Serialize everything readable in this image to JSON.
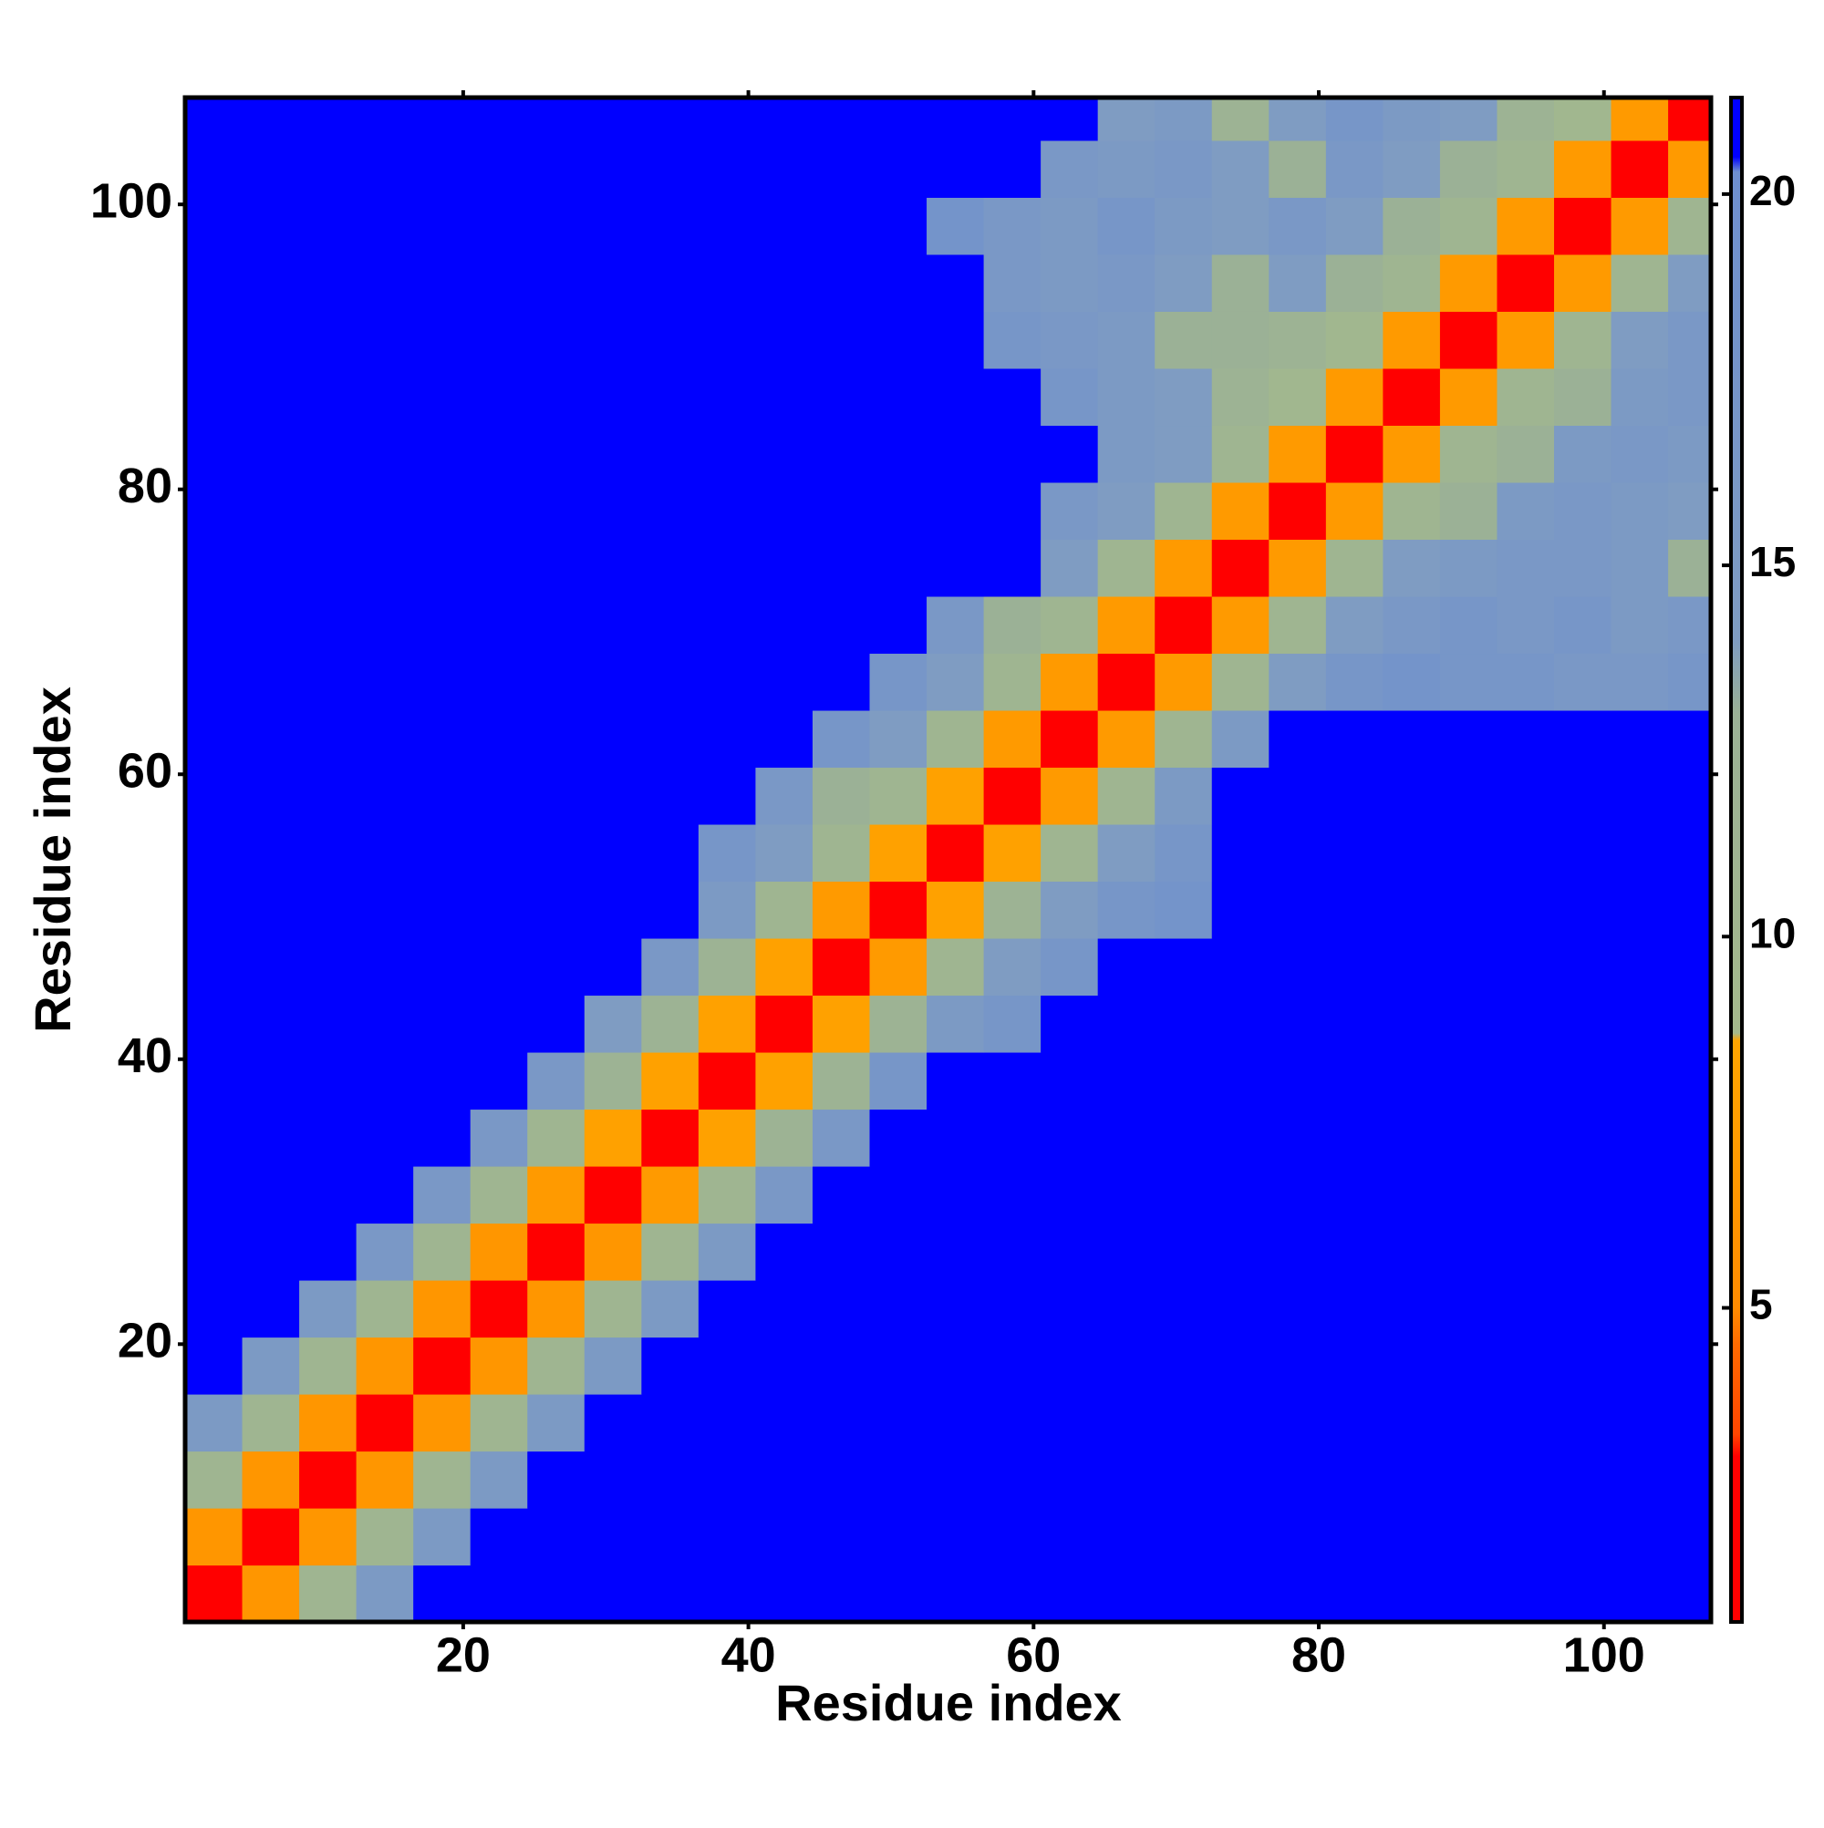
{
  "chart_data": {
    "type": "heatmap",
    "xlabel": "Residue index",
    "ylabel": "Residue index",
    "x_bins": [
      0.5,
      4.5,
      8.5,
      12.5,
      16.5,
      20.5,
      24.5,
      28.5,
      32.5,
      36.5,
      40.5,
      44.5,
      48.5,
      52.5,
      56.5,
      60.5,
      64.5,
      68.5,
      72.5,
      76.5,
      80.5,
      84.5,
      88.5,
      92.5,
      96.5,
      100.5,
      104.5,
      107.5
    ],
    "y_bins": [
      0.5,
      4.5,
      8.5,
      12.5,
      16.5,
      20.5,
      24.5,
      28.5,
      32.5,
      36.5,
      40.5,
      44.5,
      48.5,
      52.5,
      56.5,
      60.5,
      64.5,
      68.5,
      72.5,
      76.5,
      80.5,
      84.5,
      88.5,
      92.5,
      96.5,
      100.5,
      104.5,
      107.5
    ],
    "z": [
      [
        2.5,
        6.5,
        11,
        15,
        22,
        22,
        22,
        22,
        22,
        22,
        22,
        22,
        22,
        22,
        22,
        22,
        22,
        22,
        22,
        22,
        22,
        22,
        22,
        22,
        22,
        22,
        22
      ],
      [
        6.5,
        2.5,
        6.5,
        11,
        15,
        22,
        22,
        22,
        22,
        22,
        22,
        22,
        22,
        22,
        22,
        22,
        22,
        22,
        22,
        22,
        22,
        22,
        22,
        22,
        22,
        22,
        22
      ],
      [
        11,
        6.5,
        2.5,
        6.5,
        11,
        15,
        22,
        22,
        22,
        22,
        22,
        22,
        22,
        22,
        22,
        22,
        22,
        22,
        22,
        22,
        22,
        22,
        22,
        22,
        22,
        22,
        22
      ],
      [
        15,
        11,
        6.5,
        2.5,
        6.5,
        11,
        15,
        22,
        22,
        22,
        22,
        22,
        22,
        22,
        22,
        22,
        22,
        22,
        22,
        22,
        22,
        22,
        22,
        22,
        22,
        22,
        22
      ],
      [
        22,
        15,
        11,
        6.5,
        2.5,
        6.5,
        11,
        15,
        22,
        22,
        22,
        22,
        22,
        22,
        22,
        22,
        22,
        22,
        22,
        22,
        22,
        22,
        22,
        22,
        22,
        22,
        22
      ],
      [
        22,
        22,
        15,
        11,
        6.5,
        2.5,
        6.5,
        11,
        15,
        22,
        22,
        22,
        22,
        22,
        22,
        22,
        22,
        22,
        22,
        22,
        22,
        22,
        22,
        22,
        22,
        22,
        22
      ],
      [
        22,
        22,
        22,
        16,
        11,
        6.5,
        2.5,
        6.5,
        11,
        15,
        22,
        22,
        22,
        22,
        22,
        22,
        22,
        22,
        22,
        22,
        22,
        22,
        22,
        22,
        22,
        22,
        22
      ],
      [
        22,
        22,
        22,
        22,
        16,
        11,
        7,
        2.5,
        7,
        11,
        16,
        22,
        22,
        22,
        22,
        22,
        22,
        22,
        22,
        22,
        22,
        22,
        22,
        22,
        22,
        22,
        22
      ],
      [
        22,
        22,
        22,
        22,
        22,
        16,
        11,
        8,
        2.5,
        8,
        12,
        16,
        22,
        22,
        22,
        22,
        22,
        22,
        22,
        22,
        22,
        22,
        22,
        22,
        22,
        22,
        22
      ],
      [
        22,
        22,
        22,
        22,
        22,
        22,
        16,
        12,
        8,
        2.5,
        8,
        12,
        17,
        22,
        22,
        22,
        22,
        22,
        22,
        22,
        22,
        22,
        22,
        22,
        22,
        22,
        22
      ],
      [
        22,
        22,
        22,
        22,
        22,
        22,
        22,
        14,
        12,
        8,
        2.5,
        8,
        12,
        15,
        17,
        22,
        22,
        22,
        22,
        22,
        22,
        22,
        22,
        22,
        22,
        22,
        22
      ],
      [
        22,
        22,
        22,
        22,
        22,
        22,
        22,
        22,
        16,
        12,
        8,
        2.5,
        7,
        11,
        14,
        17,
        22,
        22,
        22,
        22,
        22,
        22,
        22,
        22,
        22,
        22,
        22
      ],
      [
        22,
        22,
        22,
        22,
        22,
        22,
        22,
        22,
        22,
        15,
        11,
        7,
        2.5,
        8,
        12,
        14,
        17,
        18,
        22,
        22,
        22,
        22,
        22,
        22,
        22,
        22,
        22
      ],
      [
        22,
        22,
        22,
        22,
        22,
        22,
        22,
        22,
        22,
        17,
        14,
        11,
        8,
        2.5,
        8,
        11,
        14,
        17,
        22,
        22,
        22,
        22,
        22,
        22,
        22,
        22,
        22
      ],
      [
        22,
        22,
        22,
        22,
        22,
        22,
        22,
        22,
        22,
        22,
        16,
        13,
        11,
        8,
        2.5,
        7,
        11,
        15,
        22,
        22,
        22,
        22,
        22,
        22,
        22,
        22,
        22
      ],
      [
        22,
        22,
        22,
        22,
        22,
        22,
        22,
        22,
        22,
        22,
        22,
        17,
        14,
        11,
        7,
        2.5,
        7,
        11,
        15,
        22,
        22,
        22,
        22,
        22,
        22,
        22,
        22
      ],
      [
        22,
        22,
        22,
        22,
        22,
        22,
        22,
        22,
        22,
        22,
        22,
        22,
        17,
        14,
        11,
        7,
        2.5,
        7,
        11,
        14,
        17,
        18,
        17,
        17,
        16,
        16,
        17
      ],
      [
        22,
        22,
        22,
        22,
        22,
        22,
        22,
        22,
        22,
        22,
        22,
        22,
        22,
        16,
        13,
        11,
        7,
        2.5,
        7,
        11,
        14,
        16,
        17,
        16,
        17,
        15,
        16
      ],
      [
        22,
        22,
        22,
        22,
        22,
        22,
        22,
        22,
        22,
        22,
        22,
        22,
        22,
        22,
        22,
        14,
        11,
        7,
        2.5,
        7,
        11,
        14,
        15,
        16,
        16,
        15,
        13
      ],
      [
        22,
        22,
        22,
        22,
        22,
        22,
        22,
        22,
        22,
        22,
        22,
        22,
        22,
        22,
        22,
        16,
        14,
        11,
        7,
        2.5,
        7,
        11,
        13,
        15,
        16,
        15,
        14
      ],
      [
        22,
        22,
        22,
        22,
        22,
        22,
        22,
        22,
        22,
        22,
        22,
        22,
        22,
        22,
        22,
        22,
        15,
        14,
        11,
        7,
        2.5,
        7,
        11,
        13,
        15,
        16,
        15
      ],
      [
        22,
        22,
        22,
        22,
        22,
        22,
        22,
        22,
        22,
        22,
        22,
        22,
        22,
        22,
        22,
        17,
        15,
        14,
        12,
        10,
        7,
        2.5,
        7,
        11,
        13,
        15,
        16
      ],
      [
        22,
        22,
        22,
        22,
        22,
        22,
        22,
        22,
        22,
        22,
        22,
        22,
        22,
        22,
        17,
        16,
        15,
        13,
        13,
        12,
        10,
        7,
        2.5,
        7,
        11,
        14,
        16
      ],
      [
        22,
        22,
        22,
        22,
        22,
        22,
        22,
        22,
        22,
        22,
        22,
        22,
        22,
        22,
        16,
        15,
        16,
        14,
        13,
        14,
        13,
        11,
        7,
        2.5,
        7,
        11,
        14
      ],
      [
        22,
        22,
        22,
        22,
        22,
        22,
        22,
        22,
        22,
        22,
        22,
        22,
        22,
        18,
        16,
        15,
        17,
        15,
        14,
        16,
        14,
        13,
        11,
        7,
        2.5,
        7,
        11
      ],
      [
        22,
        22,
        22,
        22,
        22,
        22,
        22,
        22,
        22,
        22,
        22,
        22,
        22,
        22,
        22,
        16,
        15,
        16,
        14,
        13,
        16,
        14,
        13,
        11,
        7,
        2.5,
        7
      ],
      [
        22,
        22,
        22,
        22,
        22,
        22,
        22,
        22,
        22,
        22,
        22,
        22,
        22,
        22,
        22,
        22,
        14,
        15,
        12,
        14,
        17,
        15,
        14,
        12,
        10,
        7,
        2.5
      ]
    ],
    "xlim": [
      0.5,
      107.5
    ],
    "ylim": [
      0.5,
      107.5
    ],
    "xticks": [
      20,
      40,
      60,
      80,
      100
    ],
    "yticks": [
      20,
      40,
      60,
      80,
      100
    ],
    "colorbar": {
      "lim": [
        0.77,
        21.3
      ],
      "ticks": [
        5,
        10,
        15,
        20
      ],
      "colorscale": [
        [
          0.77,
          "#ff0000"
        ],
        [
          3,
          "#ff0000"
        ],
        [
          3.3,
          "#ff4500"
        ],
        [
          4.5,
          "#ff6a00"
        ],
        [
          5,
          "#ff8c00"
        ],
        [
          8.6,
          "#ffa500"
        ],
        [
          8.7,
          "#a4b98c"
        ],
        [
          13,
          "#9bb196"
        ],
        [
          14,
          "#7f9cc2"
        ],
        [
          20.3,
          "#6e8fcf"
        ],
        [
          20.5,
          "#0000ff"
        ],
        [
          21.3,
          "#0000ff"
        ]
      ]
    }
  }
}
